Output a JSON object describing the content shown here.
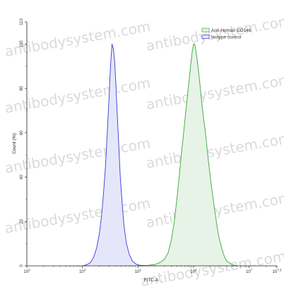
{
  "chart_data": {
    "type": "area",
    "xlabel": "FITC-A",
    "ylabel": "Count (%)",
    "x_scale": "log",
    "x_range": [
      1000,
      31622777
    ],
    "y_range": [
      0,
      110
    ],
    "x_ticks": [
      {
        "value": 1000,
        "base": "10",
        "exp": "3"
      },
      {
        "value": 10000,
        "base": "10",
        "exp": "4"
      },
      {
        "value": 100000,
        "base": "10",
        "exp": "5"
      },
      {
        "value": 1000000,
        "base": "10",
        "exp": "6"
      },
      {
        "value": 10000000,
        "base": "10",
        "exp": "7"
      },
      {
        "value": 31622777,
        "base": "10",
        "exp": "7.5"
      }
    ],
    "y_ticks": [
      0,
      20,
      40,
      60,
      80,
      100,
      110
    ],
    "grid": false,
    "legend_position": "top-right",
    "series": [
      {
        "name": "Anti-Human CD146",
        "color": "#3aa63a",
        "fill": "#e6f3e6",
        "points": [
          [
            100000,
            0
          ],
          [
            150000,
            0.2
          ],
          [
            200000,
            0.6
          ],
          [
            250000,
            1.5
          ],
          [
            300000,
            3
          ],
          [
            350000,
            6
          ],
          [
            400000,
            12
          ],
          [
            450000,
            20
          ],
          [
            500000,
            30
          ],
          [
            550000,
            40
          ],
          [
            600000,
            50
          ],
          [
            650000,
            58
          ],
          [
            700000,
            66
          ],
          [
            750000,
            73
          ],
          [
            800000,
            80
          ],
          [
            850000,
            86
          ],
          [
            900000,
            92
          ],
          [
            950000,
            97
          ],
          [
            1000000,
            100
          ],
          [
            1050000,
            100
          ],
          [
            1100000,
            97
          ],
          [
            1150000,
            94
          ],
          [
            1200000,
            90
          ],
          [
            1300000,
            82
          ],
          [
            1400000,
            74
          ],
          [
            1500000,
            67
          ],
          [
            1600000,
            62
          ],
          [
            1700000,
            56
          ],
          [
            1800000,
            50
          ],
          [
            2000000,
            40
          ],
          [
            2200000,
            32
          ],
          [
            2500000,
            22
          ],
          [
            2800000,
            14
          ],
          [
            3200000,
            8
          ],
          [
            3600000,
            4
          ],
          [
            4000000,
            2
          ],
          [
            5000000,
            0.5
          ],
          [
            6000000,
            0
          ]
        ]
      },
      {
        "name": "Isotype control",
        "color": "#3a3ad8",
        "fill": "#e6e6fa",
        "points": [
          [
            10000,
            0
          ],
          [
            12000,
            0.5
          ],
          [
            14000,
            1.5
          ],
          [
            16000,
            4
          ],
          [
            18000,
            8
          ],
          [
            20000,
            14
          ],
          [
            22000,
            22
          ],
          [
            24000,
            33
          ],
          [
            26000,
            45
          ],
          [
            28000,
            60
          ],
          [
            30000,
            75
          ],
          [
            32000,
            90
          ],
          [
            34000,
            100
          ],
          [
            36000,
            98
          ],
          [
            38000,
            92
          ],
          [
            40000,
            82
          ],
          [
            42000,
            70
          ],
          [
            45000,
            55
          ],
          [
            48000,
            40
          ],
          [
            52000,
            28
          ],
          [
            56000,
            18
          ],
          [
            62000,
            10
          ],
          [
            70000,
            5
          ],
          [
            80000,
            2
          ],
          [
            95000,
            0.6
          ],
          [
            110000,
            0.2
          ],
          [
            130000,
            0
          ]
        ]
      }
    ],
    "watermark": "antibodysystem.com"
  }
}
